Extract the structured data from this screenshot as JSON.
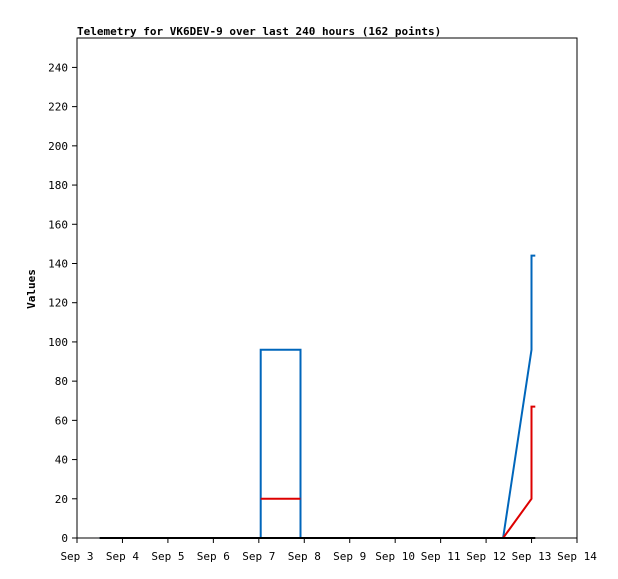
{
  "chart_data": {
    "type": "line",
    "title": "Telemetry for VK6DEV-9 over last 240 hours (162 points)",
    "xlabel": "",
    "ylabel": "Values",
    "x_tick_labels": [
      "Sep 3",
      "Sep 4",
      "Sep 5",
      "Sep 6",
      "Sep 7",
      "Sep 8",
      "Sep 9",
      "Sep 10",
      "Sep 11",
      "Sep 12",
      "Sep 13",
      "Sep 14"
    ],
    "xlim": [
      "2000-09-03T00:00",
      "2000-09-14T00:00"
    ],
    "ylim": [
      0,
      255
    ],
    "y_ticks": [
      0,
      20,
      40,
      60,
      80,
      100,
      120,
      140,
      160,
      180,
      200,
      220,
      240
    ],
    "grid": false,
    "legend": "none",
    "series": [
      {
        "color": "#0066bb",
        "points": [
          [
            "2000-09-03T12:00",
            0
          ],
          [
            "2000-09-07T01:00",
            0
          ],
          [
            "2000-09-07T01:00",
            96
          ],
          [
            "2000-09-07T22:00",
            96
          ],
          [
            "2000-09-07T22:00",
            0
          ],
          [
            "2000-09-12T09:00",
            0
          ],
          [
            "2000-09-13T00:00",
            96
          ],
          [
            "2000-09-13T00:00",
            144
          ],
          [
            "2000-09-13T02:00",
            144
          ]
        ]
      },
      {
        "color": "#dd0000",
        "points": [
          [
            "2000-09-07T01:00",
            20
          ],
          [
            "2000-09-07T22:00",
            20
          ]
        ]
      },
      {
        "color": "#dd0000",
        "points": [
          [
            "2000-09-12T09:00",
            0
          ],
          [
            "2000-09-13T00:00",
            20
          ],
          [
            "2000-09-13T00:00",
            67
          ],
          [
            "2000-09-13T02:00",
            67
          ]
        ]
      },
      {
        "color": "#000000",
        "points": [
          [
            "2000-09-03T12:00",
            0
          ],
          [
            "2000-09-13T02:00",
            0
          ]
        ]
      }
    ]
  }
}
